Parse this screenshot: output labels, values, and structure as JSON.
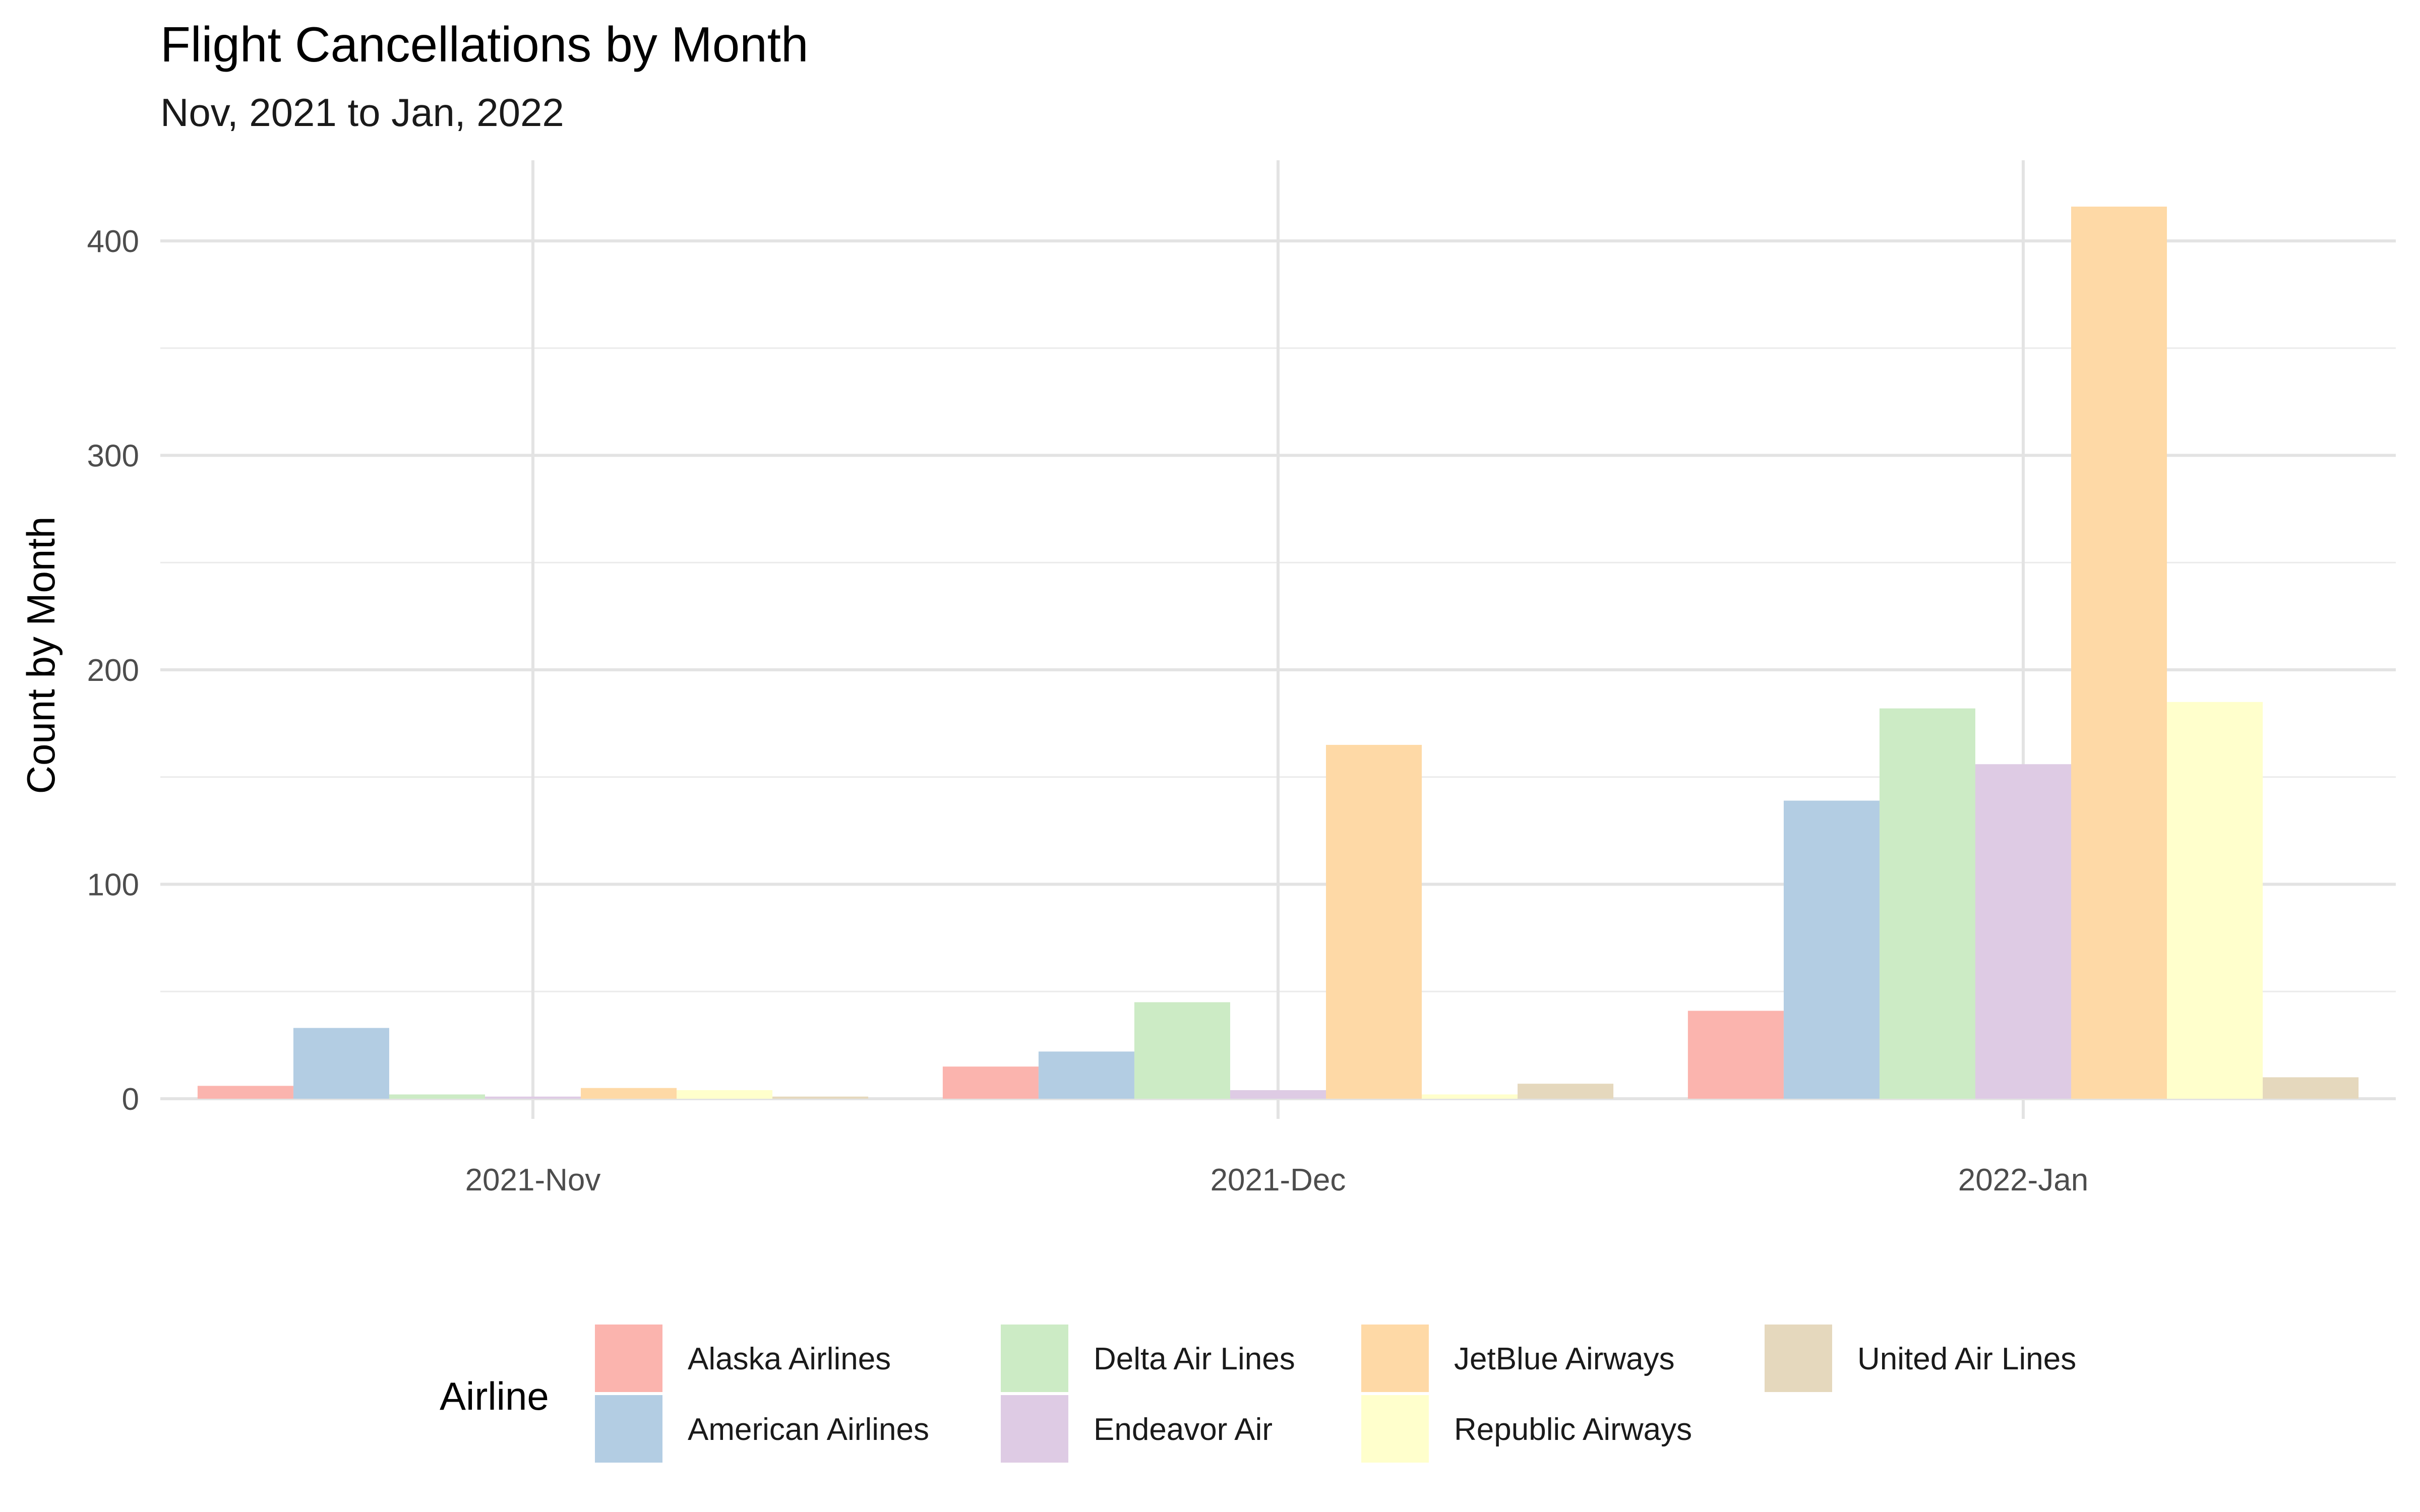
{
  "chart_data": {
    "type": "bar",
    "title": "Flight Cancellations by Month",
    "subtitle": "Nov, 2021 to Jan, 2022",
    "xlabel": "",
    "ylabel": "Count by Month",
    "categories": [
      "2021-Nov",
      "2021-Dec",
      "2022-Jan"
    ],
    "ylim": [
      0,
      438
    ],
    "yticks": [
      0,
      100,
      200,
      300,
      400
    ],
    "grid": true,
    "legend_title": "Airline",
    "legend_position": "bottom",
    "series": [
      {
        "name": "Alaska Airlines",
        "color": "#FBB4AE",
        "values": [
          6,
          15,
          41
        ]
      },
      {
        "name": "American Airlines",
        "color": "#B3CDE3",
        "values": [
          33,
          22,
          139
        ]
      },
      {
        "name": "Delta Air Lines",
        "color": "#CCEBC5",
        "values": [
          2,
          45,
          182
        ]
      },
      {
        "name": "Endeavor Air",
        "color": "#DECBE4",
        "values": [
          1,
          4,
          156
        ]
      },
      {
        "name": "JetBlue Airways",
        "color": "#FED9A6",
        "values": [
          5,
          165,
          416
        ]
      },
      {
        "name": "Republic Airways",
        "color": "#FFFFCC",
        "values": [
          4,
          2,
          185
        ]
      },
      {
        "name": "United Air Lines",
        "color": "#E5D8BD",
        "values": [
          1,
          7,
          10
        ]
      }
    ]
  }
}
